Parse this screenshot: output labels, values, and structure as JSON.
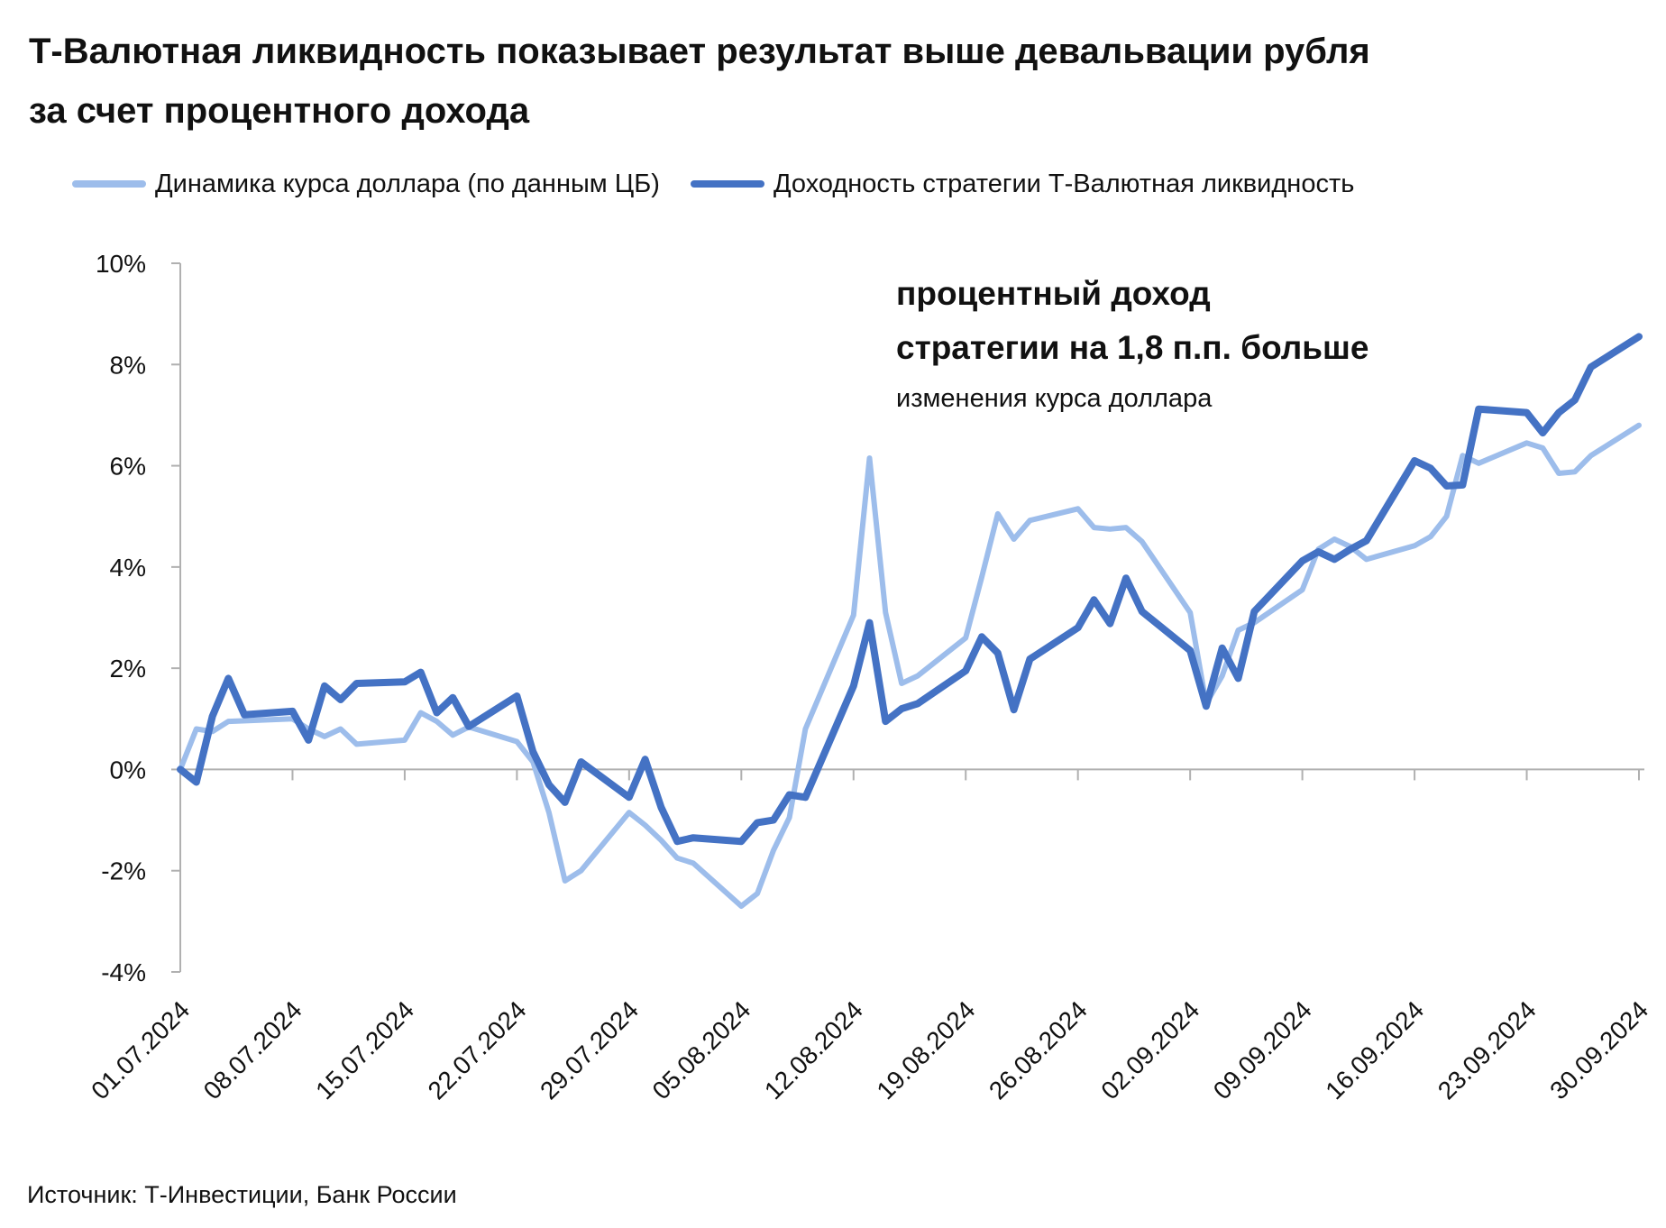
{
  "title": {
    "line1": "Т-Валютная ликвидность показывает результат выше девальвации рубля",
    "line2": "за счет процентного дохода"
  },
  "annotation": {
    "line1": "процентный доход",
    "line2": "стратегии на 1,8 п.п. больше",
    "line3": "изменения курса доллара"
  },
  "source": "Источник: Т-Инвестиции, Банк России",
  "colors": {
    "light": "#9dbdeb",
    "dark": "#4472c4",
    "axis": "#b0b0b0"
  },
  "chart_data": {
    "type": "line",
    "ylim": [
      -4,
      10
    ],
    "yticks": [
      -4,
      -2,
      0,
      2,
      4,
      6,
      8,
      10
    ],
    "ytick_labels": [
      "-4%",
      "-2%",
      "0%",
      "2%",
      "4%",
      "6%",
      "8%",
      "10%"
    ],
    "xlim": [
      "01.07.2024",
      "30.09.2024"
    ],
    "xticks": [
      "01.07.2024",
      "08.07.2024",
      "15.07.2024",
      "22.07.2024",
      "29.07.2024",
      "05.08.2024",
      "12.08.2024",
      "19.08.2024",
      "26.08.2024",
      "02.09.2024",
      "09.09.2024",
      "16.09.2024",
      "23.09.2024",
      "30.09.2024"
    ],
    "grid": false,
    "legend_position": "top-left",
    "series": [
      {
        "name": "Динамика курса доллара (по данным ЦБ)",
        "color": "#9dbdeb",
        "points": [
          [
            "01.07.2024",
            0.0
          ],
          [
            "02.07.2024",
            0.8
          ],
          [
            "03.07.2024",
            0.75
          ],
          [
            "04.07.2024",
            0.95
          ],
          [
            "08.07.2024",
            1.0
          ],
          [
            "09.07.2024",
            0.8
          ],
          [
            "10.07.2024",
            0.65
          ],
          [
            "11.07.2024",
            0.8
          ],
          [
            "12.07.2024",
            0.5
          ],
          [
            "15.07.2024",
            0.58
          ],
          [
            "16.07.2024",
            1.12
          ],
          [
            "17.07.2024",
            0.95
          ],
          [
            "18.07.2024",
            0.68
          ],
          [
            "19.07.2024",
            0.84
          ],
          [
            "22.07.2024",
            0.55
          ],
          [
            "23.07.2024",
            0.15
          ],
          [
            "24.07.2024",
            -0.85
          ],
          [
            "25.07.2024",
            -2.2
          ],
          [
            "26.07.2024",
            -2.0
          ],
          [
            "29.07.2024",
            -0.85
          ],
          [
            "30.07.2024",
            -1.1
          ],
          [
            "31.07.2024",
            -1.4
          ],
          [
            "01.08.2024",
            -1.75
          ],
          [
            "02.08.2024",
            -1.85
          ],
          [
            "05.08.2024",
            -2.7
          ],
          [
            "06.08.2024",
            -2.45
          ],
          [
            "07.08.2024",
            -1.6
          ],
          [
            "08.08.2024",
            -0.95
          ],
          [
            "09.08.2024",
            0.8
          ],
          [
            "12.08.2024",
            3.05
          ],
          [
            "13.08.2024",
            6.15
          ],
          [
            "14.08.2024",
            3.1
          ],
          [
            "15.08.2024",
            1.7
          ],
          [
            "16.08.2024",
            1.85
          ],
          [
            "19.08.2024",
            2.6
          ],
          [
            "20.08.2024",
            3.8
          ],
          [
            "21.08.2024",
            5.05
          ],
          [
            "22.08.2024",
            4.55
          ],
          [
            "23.08.2024",
            4.92
          ],
          [
            "26.08.2024",
            5.15
          ],
          [
            "27.08.2024",
            4.78
          ],
          [
            "28.08.2024",
            4.75
          ],
          [
            "29.08.2024",
            4.78
          ],
          [
            "30.08.2024",
            4.5
          ],
          [
            "02.09.2024",
            3.1
          ],
          [
            "03.09.2024",
            1.3
          ],
          [
            "04.09.2024",
            1.85
          ],
          [
            "05.09.2024",
            2.75
          ],
          [
            "06.09.2024",
            2.9
          ],
          [
            "09.09.2024",
            3.55
          ],
          [
            "10.09.2024",
            4.35
          ],
          [
            "11.09.2024",
            4.55
          ],
          [
            "12.09.2024",
            4.4
          ],
          [
            "13.09.2024",
            4.15
          ],
          [
            "16.09.2024",
            4.42
          ],
          [
            "17.09.2024",
            4.6
          ],
          [
            "18.09.2024",
            5.0
          ],
          [
            "19.09.2024",
            6.2
          ],
          [
            "20.09.2024",
            6.05
          ],
          [
            "23.09.2024",
            6.45
          ],
          [
            "24.09.2024",
            6.35
          ],
          [
            "25.09.2024",
            5.85
          ],
          [
            "26.09.2024",
            5.88
          ],
          [
            "27.09.2024",
            6.2
          ],
          [
            "30.09.2024",
            6.8
          ]
        ]
      },
      {
        "name": "Доходность стратегии Т-Валютная ликвидность",
        "color": "#4472c4",
        "points": [
          [
            "01.07.2024",
            0.0
          ],
          [
            "02.07.2024",
            -0.25
          ],
          [
            "03.07.2024",
            1.05
          ],
          [
            "04.07.2024",
            1.8
          ],
          [
            "05.07.2024",
            1.08
          ],
          [
            "08.07.2024",
            1.15
          ],
          [
            "09.07.2024",
            0.58
          ],
          [
            "10.07.2024",
            1.65
          ],
          [
            "11.07.2024",
            1.38
          ],
          [
            "12.07.2024",
            1.7
          ],
          [
            "15.07.2024",
            1.73
          ],
          [
            "16.07.2024",
            1.92
          ],
          [
            "17.07.2024",
            1.12
          ],
          [
            "18.07.2024",
            1.42
          ],
          [
            "19.07.2024",
            0.85
          ],
          [
            "22.07.2024",
            1.45
          ],
          [
            "23.07.2024",
            0.35
          ],
          [
            "24.07.2024",
            -0.3
          ],
          [
            "25.07.2024",
            -0.65
          ],
          [
            "26.07.2024",
            0.15
          ],
          [
            "29.07.2024",
            -0.55
          ],
          [
            "30.07.2024",
            0.2
          ],
          [
            "31.07.2024",
            -0.75
          ],
          [
            "01.08.2024",
            -1.42
          ],
          [
            "02.08.2024",
            -1.35
          ],
          [
            "05.08.2024",
            -1.42
          ],
          [
            "06.08.2024",
            -1.05
          ],
          [
            "07.08.2024",
            -1.0
          ],
          [
            "08.08.2024",
            -0.5
          ],
          [
            "09.08.2024",
            -0.55
          ],
          [
            "12.08.2024",
            1.65
          ],
          [
            "13.08.2024",
            2.9
          ],
          [
            "14.08.2024",
            0.95
          ],
          [
            "15.08.2024",
            1.2
          ],
          [
            "16.08.2024",
            1.3
          ],
          [
            "19.08.2024",
            1.95
          ],
          [
            "20.08.2024",
            2.62
          ],
          [
            "21.08.2024",
            2.3
          ],
          [
            "22.08.2024",
            1.18
          ],
          [
            "23.08.2024",
            2.18
          ],
          [
            "26.08.2024",
            2.8
          ],
          [
            "27.08.2024",
            3.35
          ],
          [
            "28.08.2024",
            2.88
          ],
          [
            "29.08.2024",
            3.78
          ],
          [
            "30.08.2024",
            3.12
          ],
          [
            "02.09.2024",
            2.35
          ],
          [
            "03.09.2024",
            1.25
          ],
          [
            "04.09.2024",
            2.4
          ],
          [
            "05.09.2024",
            1.8
          ],
          [
            "06.09.2024",
            3.12
          ],
          [
            "09.09.2024",
            4.12
          ],
          [
            "10.09.2024",
            4.3
          ],
          [
            "11.09.2024",
            4.15
          ],
          [
            "12.09.2024",
            4.35
          ],
          [
            "13.09.2024",
            4.52
          ],
          [
            "16.09.2024",
            6.1
          ],
          [
            "17.09.2024",
            5.95
          ],
          [
            "18.09.2024",
            5.6
          ],
          [
            "19.09.2024",
            5.62
          ],
          [
            "20.09.2024",
            7.12
          ],
          [
            "23.09.2024",
            7.05
          ],
          [
            "24.09.2024",
            6.65
          ],
          [
            "25.09.2024",
            7.05
          ],
          [
            "26.09.2024",
            7.3
          ],
          [
            "27.09.2024",
            7.95
          ],
          [
            "30.09.2024",
            8.55
          ]
        ]
      }
    ]
  }
}
